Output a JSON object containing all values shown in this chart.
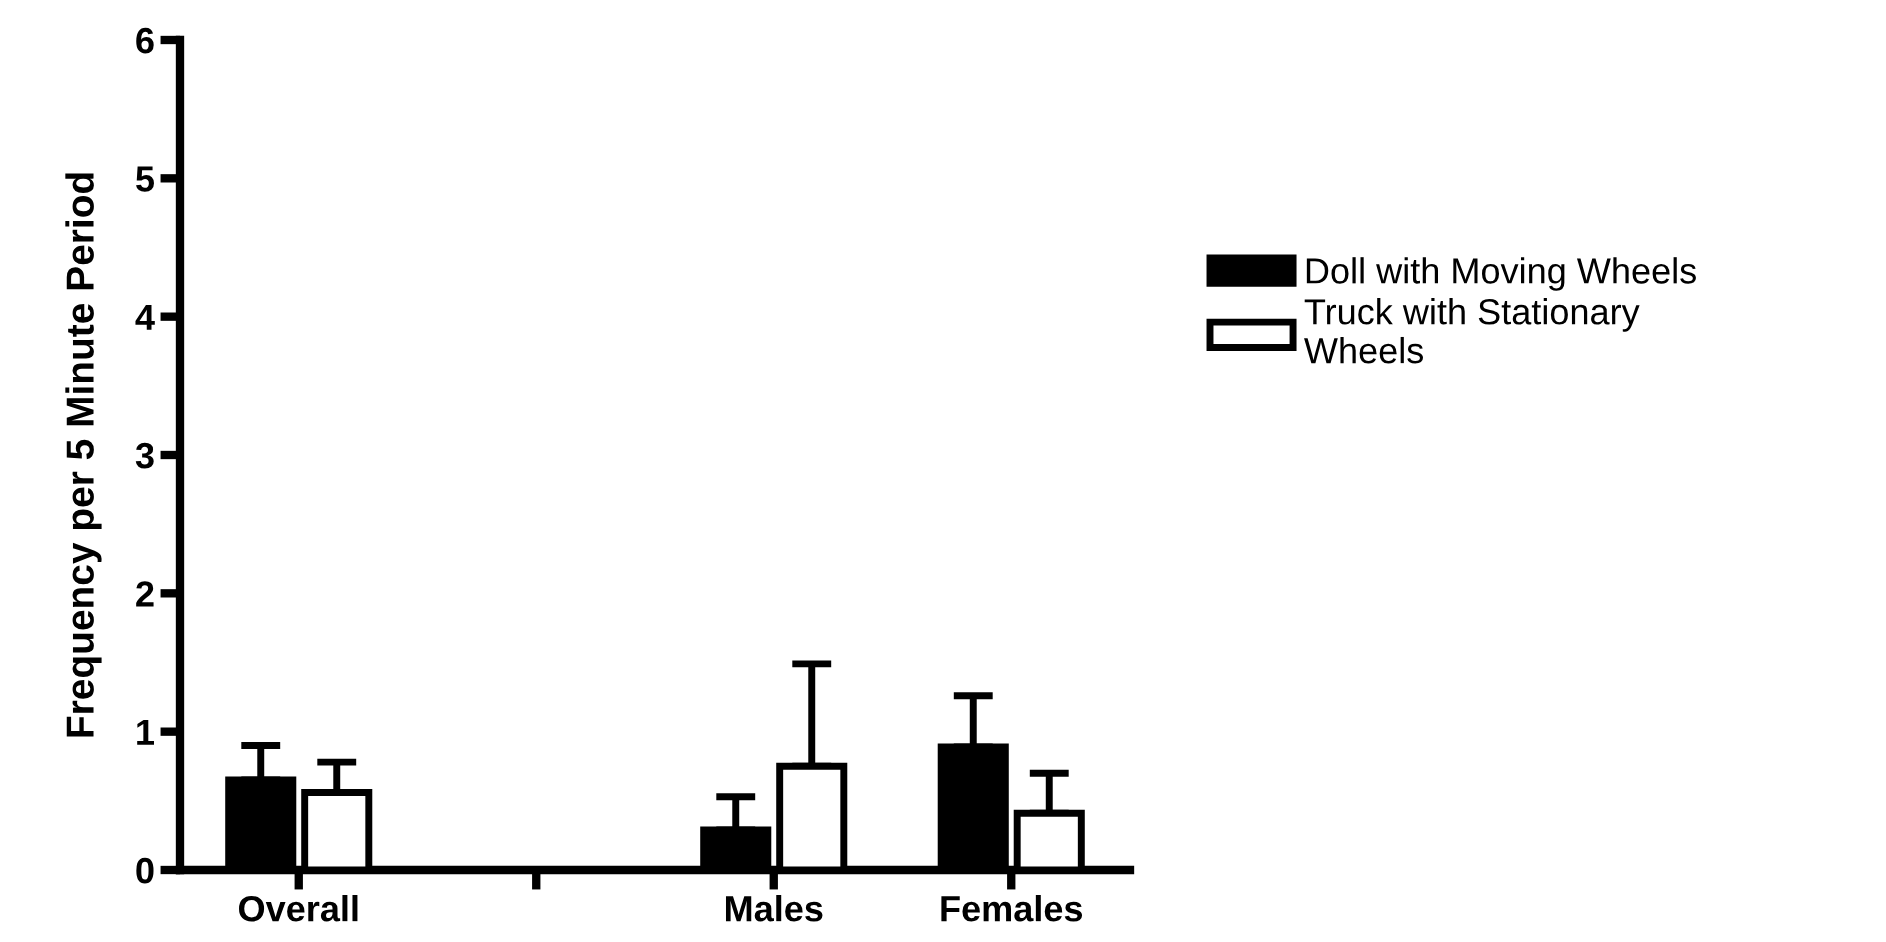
{
  "chart_data": {
    "type": "bar",
    "ylabel": "Frequency per 5 Minute Period",
    "categories": [
      "Overall",
      null,
      "Males",
      "Females"
    ],
    "series": [
      {
        "name": "Doll with Moving Wheels",
        "color": "#000000",
        "values": [
          0.65,
          0,
          0.29,
          0.89
        ],
        "errors": [
          [
            0.65,
            0.9
          ],
          null,
          [
            0.29,
            0.53
          ],
          [
            0.89,
            1.26
          ]
        ]
      },
      {
        "name": "Truck with Stationary Wheels",
        "color": "#ffffff",
        "values": [
          0.56,
          0,
          0.75,
          0.41
        ],
        "errors": [
          [
            0.56,
            0.78
          ],
          null,
          [
            0.75,
            1.49
          ],
          [
            0.41,
            0.7
          ]
        ]
      }
    ],
    "ylim": [
      0,
      6
    ],
    "yticks": [
      0,
      1,
      2,
      3,
      4,
      5,
      6
    ],
    "grid": false,
    "legend": "right"
  }
}
